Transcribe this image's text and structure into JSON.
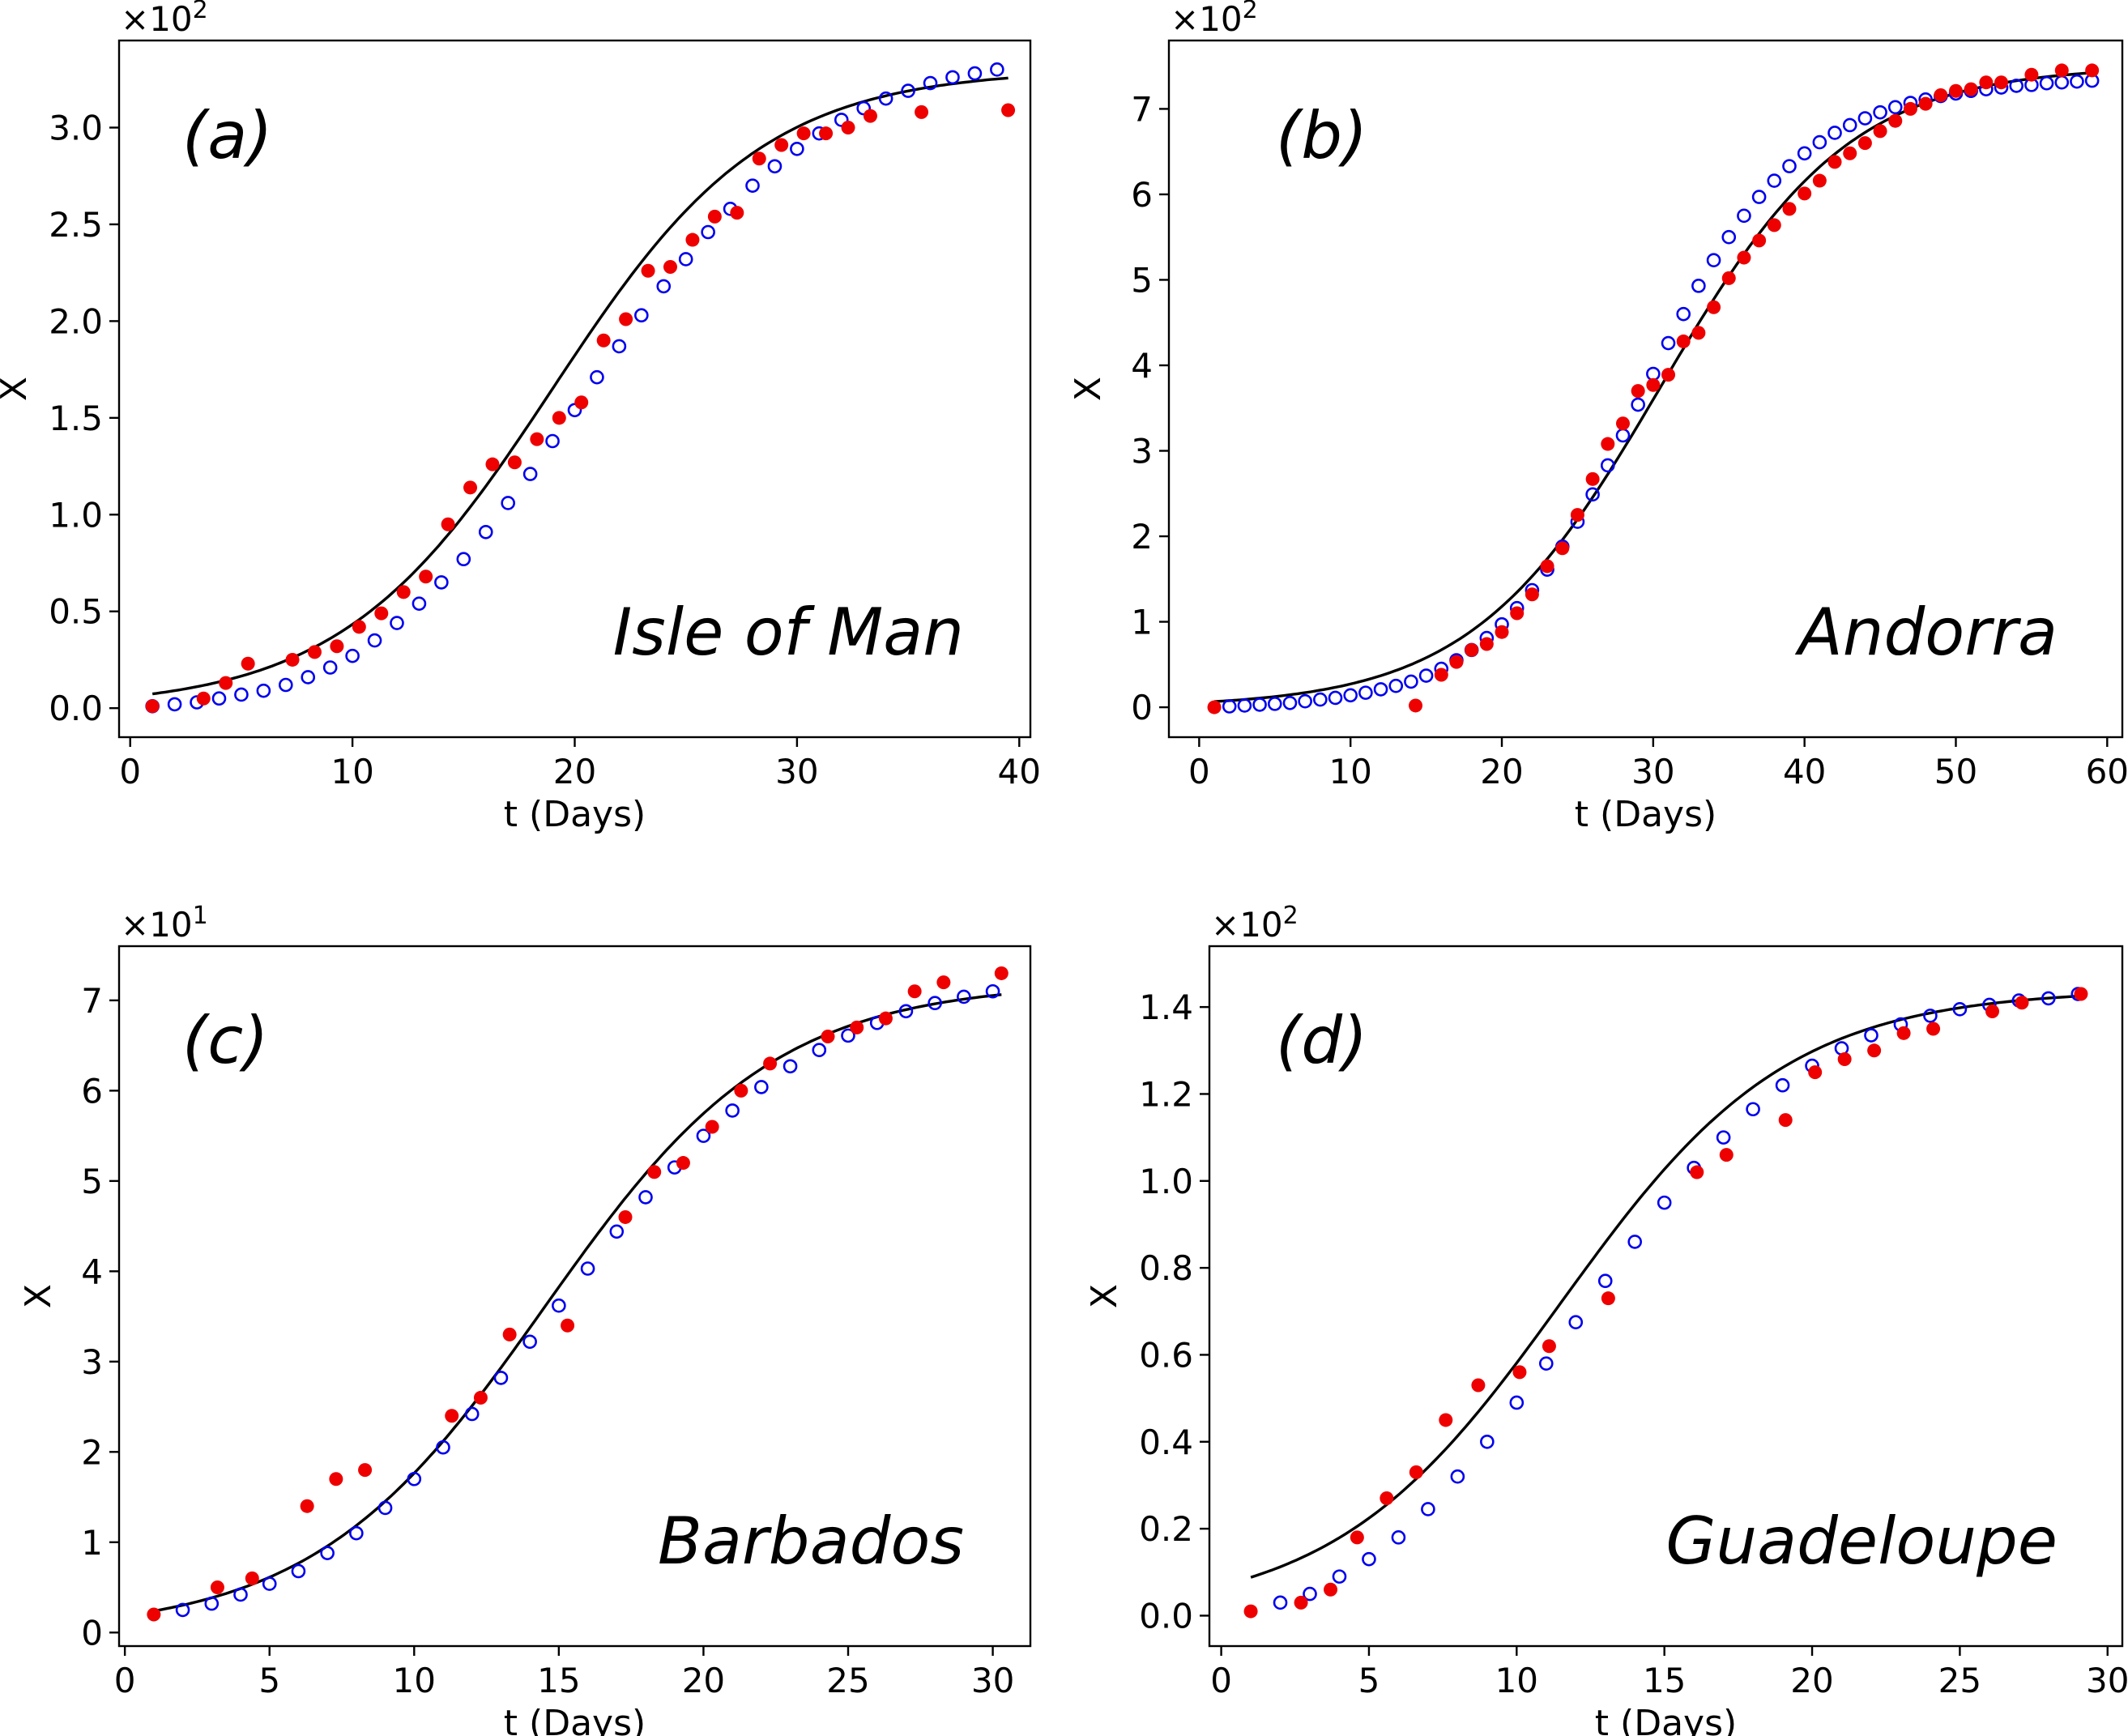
{
  "chart_data": [
    {
      "type": "scatter",
      "panel_label": "(a)",
      "country": "Isle of Man",
      "xlabel": "t (Days)",
      "ylabel": "X",
      "multiplier": "×10",
      "multiplier_exp": "2",
      "xlim": [
        -0.5,
        40.5
      ],
      "ylim": [
        -0.15,
        3.45
      ],
      "xticks": [
        0,
        10,
        20,
        30,
        40
      ],
      "xtick_labels": [
        "0",
        "10",
        "20",
        "30",
        "40"
      ],
      "yticks": [
        0,
        0.5,
        1,
        1.5,
        2,
        2.5,
        3
      ],
      "ytick_labels": [
        "0.0",
        "0.5",
        "1.0",
        "1.5",
        "2.0",
        "2.5",
        "3.0"
      ],
      "fit": {
        "L": 3.3,
        "k": 0.21,
        "t0": 19.0,
        "x_start": 1,
        "x_end": 39.5
      },
      "series": [
        {
          "style": "open-blue",
          "x": [
            1,
            2,
            3,
            4,
            5,
            6,
            7,
            8,
            9,
            10,
            11,
            12,
            13,
            14,
            15,
            16,
            17,
            18,
            19,
            20,
            21,
            22,
            23,
            24,
            25,
            26,
            27,
            28,
            29,
            30,
            31,
            32,
            33,
            34,
            35,
            36,
            37,
            38,
            39
          ],
          "y": [
            0.01,
            0.02,
            0.03,
            0.05,
            0.07,
            0.09,
            0.12,
            0.16,
            0.21,
            0.27,
            0.35,
            0.44,
            0.54,
            0.65,
            0.77,
            0.91,
            1.06,
            1.21,
            1.38,
            1.54,
            1.71,
            1.87,
            2.03,
            2.18,
            2.32,
            2.46,
            2.58,
            2.7,
            2.8,
            2.89,
            2.97,
            3.04,
            3.1,
            3.15,
            3.19,
            3.23,
            3.26,
            3.28,
            3.3
          ]
        },
        {
          "style": "filled-red",
          "x": [
            1,
            3.3,
            4.3,
            5.3,
            7.3,
            8.3,
            9.3,
            10.3,
            11.3,
            12.3,
            13.3,
            14.3,
            15.3,
            16.3,
            17.3,
            18.3,
            19.3,
            20.3,
            21.3,
            22.3,
            23.3,
            24.3,
            25.3,
            26.3,
            27.3,
            28.3,
            29.3,
            30.3,
            31.3,
            32.3,
            33.3,
            35.6,
            39.5
          ],
          "y": [
            0.01,
            0.05,
            0.13,
            0.23,
            0.25,
            0.29,
            0.32,
            0.42,
            0.49,
            0.6,
            0.68,
            0.95,
            1.14,
            1.26,
            1.27,
            1.39,
            1.5,
            1.58,
            1.9,
            2.01,
            2.26,
            2.28,
            2.42,
            2.54,
            2.56,
            2.84,
            2.91,
            2.97,
            2.97,
            3.0,
            3.06,
            3.08,
            3.09
          ]
        }
      ]
    },
    {
      "type": "scatter",
      "panel_label": "(b)",
      "country": "Andorra",
      "xlabel": "t (Days)",
      "ylabel": "X",
      "multiplier": "×10",
      "multiplier_exp": "2",
      "xlim": [
        -2,
        61
      ],
      "ylim": [
        -0.35,
        7.8
      ],
      "xticks": [
        0,
        10,
        20,
        30,
        40,
        50,
        60
      ],
      "xtick_labels": [
        "0",
        "10",
        "20",
        "30",
        "40",
        "50",
        "60"
      ],
      "yticks": [
        0,
        1,
        2,
        3,
        4,
        5,
        6,
        7
      ],
      "ytick_labels": [
        "0",
        "1",
        "2",
        "3",
        "4",
        "5",
        "6",
        "7"
      ],
      "fit": {
        "L": 7.5,
        "k": 0.16,
        "t0": 30.5,
        "x_start": 1,
        "x_end": 59
      },
      "series": [
        {
          "style": "open-blue",
          "x": [
            2,
            3,
            4,
            5,
            6,
            7,
            8,
            9,
            10,
            11,
            12,
            13,
            14,
            15,
            16,
            17,
            18,
            19,
            20,
            21,
            22,
            23,
            24,
            25,
            26,
            27,
            28,
            29,
            30,
            31,
            32,
            33,
            34,
            35,
            36,
            37,
            38,
            39,
            40,
            41,
            42,
            43,
            44,
            45,
            46,
            47,
            48,
            49,
            50,
            51,
            52,
            53,
            54,
            55,
            56,
            57,
            58,
            59
          ],
          "y": [
            0.01,
            0.02,
            0.03,
            0.04,
            0.05,
            0.07,
            0.09,
            0.11,
            0.14,
            0.17,
            0.21,
            0.25,
            0.3,
            0.37,
            0.45,
            0.55,
            0.67,
            0.81,
            0.97,
            1.16,
            1.37,
            1.61,
            1.88,
            2.17,
            2.49,
            2.83,
            3.18,
            3.54,
            3.9,
            4.26,
            4.6,
            4.93,
            5.23,
            5.5,
            5.75,
            5.97,
            6.16,
            6.33,
            6.48,
            6.61,
            6.72,
            6.81,
            6.89,
            6.96,
            7.02,
            7.07,
            7.11,
            7.15,
            7.18,
            7.21,
            7.23,
            7.25,
            7.27,
            7.28,
            7.3,
            7.31,
            7.32,
            7.33
          ]
        },
        {
          "style": "filled-red",
          "x": [
            1,
            14.3,
            16,
            17,
            18,
            19,
            20,
            21,
            22,
            23,
            24,
            25,
            26,
            27,
            28,
            29,
            30,
            31,
            32,
            33,
            34,
            35,
            36,
            37,
            38,
            39,
            40,
            41,
            42,
            43,
            44,
            45,
            46,
            47,
            48,
            49,
            50,
            51,
            52,
            53,
            55,
            57,
            59
          ],
          "y": [
            0.0,
            0.02,
            0.38,
            0.53,
            0.67,
            0.74,
            0.88,
            1.1,
            1.32,
            1.65,
            1.86,
            2.25,
            2.67,
            3.08,
            3.32,
            3.7,
            3.77,
            3.89,
            4.28,
            4.38,
            4.68,
            5.02,
            5.26,
            5.46,
            5.64,
            5.83,
            6.01,
            6.16,
            6.38,
            6.48,
            6.6,
            6.74,
            6.86,
            7.0,
            7.06,
            7.16,
            7.21,
            7.23,
            7.31,
            7.31,
            7.4,
            7.45,
            7.45
          ]
        }
      ]
    },
    {
      "type": "scatter",
      "panel_label": "(c)",
      "country": "Barbados",
      "xlabel": "t (Days)",
      "ylabel": "X",
      "multiplier": "×10",
      "multiplier_exp": "1",
      "xlim": [
        -0.2,
        31.3
      ],
      "ylim": [
        -0.15,
        7.6
      ],
      "xticks": [
        0,
        5,
        10,
        15,
        20,
        25,
        30
      ],
      "xtick_labels": [
        "0",
        "5",
        "10",
        "15",
        "20",
        "25",
        "30"
      ],
      "yticks": [
        0,
        1,
        2,
        3,
        4,
        5,
        6,
        7
      ],
      "ytick_labels": [
        "0",
        "1",
        "2",
        "3",
        "4",
        "5",
        "6",
        "7"
      ],
      "fit": {
        "L": 7.2,
        "k": 0.25,
        "t0": 14.5,
        "x_start": 1,
        "x_end": 30.3
      },
      "series": [
        {
          "style": "open-blue",
          "x": [
            2,
            3,
            4,
            5,
            6,
            7,
            8,
            9,
            10,
            11,
            12,
            13,
            14,
            15,
            16,
            17,
            18,
            19,
            20,
            21,
            22,
            23,
            24,
            25,
            26,
            27,
            28,
            29,
            30
          ],
          "y": [
            0.25,
            0.32,
            0.42,
            0.54,
            0.68,
            0.88,
            1.1,
            1.38,
            1.7,
            2.05,
            2.42,
            2.82,
            3.22,
            3.62,
            4.03,
            4.44,
            4.82,
            5.15,
            5.5,
            5.78,
            6.04,
            6.27,
            6.45,
            6.61,
            6.75,
            6.88,
            6.97,
            7.04,
            7.1
          ]
        },
        {
          "style": "filled-red",
          "x": [
            1,
            3.2,
            4.4,
            6.3,
            7.3,
            8.3,
            11.3,
            12.3,
            13.3,
            15.3,
            17.3,
            18.3,
            19.3,
            20.3,
            21.3,
            22.3,
            24.3,
            25.3,
            26.3,
            27.3,
            28.3,
            30.3
          ],
          "y": [
            0.2,
            0.5,
            0.6,
            1.4,
            1.7,
            1.8,
            2.4,
            2.6,
            3.3,
            3.4,
            4.6,
            5.1,
            5.2,
            5.6,
            6.0,
            6.3,
            6.6,
            6.7,
            6.8,
            7.1,
            7.2,
            7.3
          ]
        }
      ]
    },
    {
      "type": "scatter",
      "panel_label": "(d)",
      "country": "Guadeloupe",
      "xlabel": "t (Days)",
      "ylabel": "X",
      "multiplier": "×10",
      "multiplier_exp": "2",
      "xlim": [
        -0.4,
        30.5
      ],
      "ylim": [
        -0.07,
        1.54
      ],
      "xticks": [
        0,
        5,
        10,
        15,
        20,
        25,
        30
      ],
      "xtick_labels": [
        "0",
        "5",
        "10",
        "15",
        "20",
        "25",
        "30"
      ],
      "yticks": [
        0,
        0.2,
        0.4,
        0.6,
        0.8,
        1.0,
        1.2,
        1.4
      ],
      "ytick_labels": [
        "0.0",
        "0.2",
        "0.4",
        "0.6",
        "0.8",
        "1.0",
        "1.2",
        "1.4"
      ],
      "fit": {
        "L": 1.44,
        "k": 0.26,
        "t0": 11.5,
        "x_start": 1,
        "x_end": 29
      },
      "series": [
        {
          "style": "open-blue",
          "x": [
            2,
            3,
            4,
            5,
            6,
            7,
            8,
            9,
            10,
            11,
            12,
            13,
            14,
            15,
            16,
            17,
            18,
            19,
            20,
            21,
            22,
            23,
            24,
            25,
            26,
            27,
            28,
            29
          ],
          "y": [
            0.03,
            0.05,
            0.09,
            0.13,
            0.18,
            0.245,
            0.32,
            0.4,
            0.49,
            0.58,
            0.675,
            0.77,
            0.86,
            0.95,
            1.03,
            1.1,
            1.165,
            1.22,
            1.265,
            1.305,
            1.335,
            1.36,
            1.38,
            1.395,
            1.405,
            1.415,
            1.42,
            1.43
          ]
        },
        {
          "style": "filled-red",
          "x": [
            1,
            2.7,
            3.7,
            4.6,
            5.6,
            6.6,
            7.6,
            8.7,
            10.1,
            11.1,
            13.1,
            16.1,
            17.1,
            19.1,
            20.1,
            21.1,
            22.1,
            23.1,
            24.1,
            26.1,
            27.1,
            29.1
          ],
          "y": [
            0.01,
            0.03,
            0.06,
            0.18,
            0.27,
            0.33,
            0.45,
            0.53,
            0.56,
            0.62,
            0.73,
            1.02,
            1.06,
            1.14,
            1.25,
            1.28,
            1.3,
            1.34,
            1.35,
            1.39,
            1.41,
            1.43
          ]
        }
      ]
    }
  ]
}
